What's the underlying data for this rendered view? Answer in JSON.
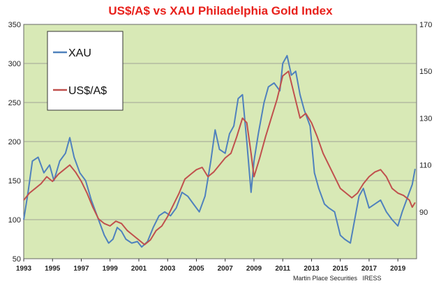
{
  "chart_data": {
    "type": "line",
    "title": "US$/A$  vs XAU  Philadelphia Gold Index",
    "source": "Martin Place Securities   IRESS",
    "x_ticks": [
      "1993",
      "1995",
      "1997",
      "1999",
      "2001",
      "2003",
      "2005",
      "2007",
      "2009",
      "2011",
      "2013",
      "2015",
      "2017",
      "2019"
    ],
    "xlim": [
      1993,
      2020.3
    ],
    "left_axis": {
      "ylim": [
        50,
        350
      ],
      "ticks": [
        "50",
        "100",
        "150",
        "200",
        "250",
        "300",
        "350"
      ]
    },
    "right_axis": {
      "ylim": [
        70,
        170
      ],
      "ticks": [
        "90",
        "110",
        "130",
        "150",
        "170"
      ]
    },
    "grid": true,
    "legend_position": "upper-left",
    "colors": {
      "xau": "#4f81bd",
      "usd_aud": "#c0504d",
      "plot_bg": "#d8e9b6"
    },
    "series": [
      {
        "name": "XAU",
        "axis": "left",
        "x": [
          1993.0,
          1993.3,
          1993.6,
          1994.0,
          1994.4,
          1994.8,
          1995.1,
          1995.5,
          1995.9,
          1996.2,
          1996.5,
          1996.9,
          1997.3,
          1997.7,
          1998.0,
          1998.3,
          1998.6,
          1998.9,
          1999.2,
          1999.5,
          1999.8,
          2000.1,
          2000.5,
          2000.9,
          2001.2,
          2001.6,
          2002.0,
          2002.4,
          2002.8,
          2003.2,
          2003.6,
          2004.0,
          2004.4,
          2004.8,
          2005.2,
          2005.6,
          2006.0,
          2006.3,
          2006.6,
          2007.0,
          2007.3,
          2007.6,
          2007.9,
          2008.2,
          2008.5,
          2008.8,
          2009.0,
          2009.3,
          2009.7,
          2010.0,
          2010.4,
          2010.8,
          2011.0,
          2011.3,
          2011.6,
          2011.9,
          2012.2,
          2012.5,
          2012.9,
          2013.2,
          2013.5,
          2013.9,
          2014.2,
          2014.6,
          2015.0,
          2015.3,
          2015.7,
          2016.0,
          2016.3,
          2016.6,
          2017.0,
          2017.4,
          2017.8,
          2018.2,
          2018.6,
          2019.0,
          2019.3,
          2019.7,
          2020.0,
          2020.2
        ],
        "values": [
          100,
          135,
          175,
          180,
          160,
          170,
          150,
          175,
          185,
          205,
          180,
          160,
          150,
          125,
          110,
          95,
          80,
          70,
          75,
          90,
          85,
          75,
          70,
          72,
          65,
          72,
          90,
          105,
          110,
          105,
          115,
          135,
          130,
          120,
          110,
          130,
          175,
          215,
          190,
          185,
          210,
          220,
          255,
          260,
          200,
          135,
          175,
          210,
          250,
          270,
          275,
          265,
          300,
          310,
          285,
          290,
          260,
          240,
          220,
          160,
          140,
          120,
          115,
          110,
          80,
          75,
          70,
          100,
          130,
          140,
          115,
          120,
          125,
          110,
          100,
          92,
          110,
          130,
          145,
          165
        ]
      },
      {
        "name": "US$/A$",
        "axis": "right",
        "x": [
          1993.0,
          1993.4,
          1993.8,
          1994.2,
          1994.6,
          1995.0,
          1995.4,
          1995.8,
          1996.2,
          1996.6,
          1997.0,
          1997.4,
          1997.8,
          1998.2,
          1998.6,
          1999.0,
          1999.4,
          1999.8,
          2000.2,
          2000.6,
          2001.0,
          2001.4,
          2001.8,
          2002.2,
          2002.6,
          2003.0,
          2003.4,
          2003.8,
          2004.2,
          2004.6,
          2005.0,
          2005.4,
          2005.8,
          2006.2,
          2006.6,
          2007.0,
          2007.4,
          2007.8,
          2008.2,
          2008.5,
          2008.8,
          2009.0,
          2009.4,
          2009.8,
          2010.2,
          2010.6,
          2011.0,
          2011.4,
          2011.8,
          2012.2,
          2012.6,
          2013.0,
          2013.4,
          2013.8,
          2014.2,
          2014.6,
          2015.0,
          2015.4,
          2015.8,
          2016.2,
          2016.6,
          2017.0,
          2017.4,
          2017.8,
          2018.2,
          2018.6,
          2019.0,
          2019.4,
          2019.8,
          2020.0,
          2020.2
        ],
        "values": [
          95,
          98,
          100,
          102,
          105,
          103,
          106,
          108,
          110,
          107,
          103,
          98,
          92,
          87,
          85,
          84,
          86,
          85,
          82,
          80,
          78,
          76,
          78,
          82,
          84,
          88,
          93,
          98,
          104,
          106,
          108,
          109,
          105,
          107,
          110,
          113,
          115,
          122,
          130,
          128,
          115,
          105,
          113,
          122,
          130,
          138,
          148,
          150,
          140,
          130,
          132,
          128,
          122,
          115,
          110,
          105,
          100,
          98,
          96,
          98,
          102,
          105,
          107,
          108,
          105,
          100,
          98,
          97,
          95,
          92,
          94
        ]
      }
    ]
  }
}
